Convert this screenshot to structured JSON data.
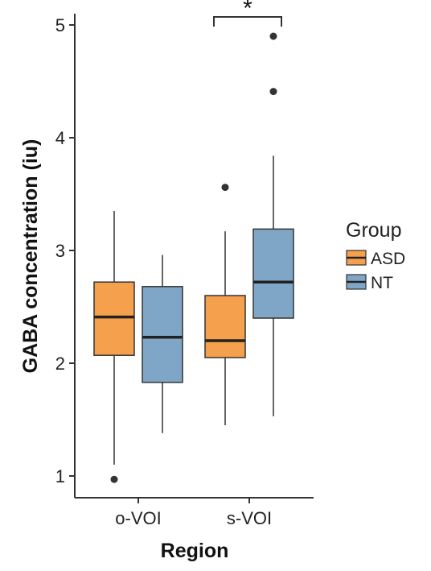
{
  "chart_data": {
    "type": "box",
    "xlabel": "Region",
    "ylabel": "GABA concentration (iu)",
    "ylim": [
      0.8,
      5.15
    ],
    "yticks": [
      1,
      2,
      3,
      4,
      5
    ],
    "categories": [
      "o-VOI",
      "s-VOI"
    ],
    "grid": false,
    "legend": {
      "title": "Group",
      "position": "right",
      "entries": [
        "ASD",
        "NT"
      ]
    },
    "series": [
      {
        "name": "ASD",
        "color": "#f5a04c",
        "boxes": [
          {
            "category": "o-VOI",
            "whisker_low": 1.1,
            "q1": 2.07,
            "median": 2.41,
            "q3": 2.72,
            "whisker_high": 3.35,
            "outliers": [
              0.97
            ]
          },
          {
            "category": "s-VOI",
            "whisker_low": 1.45,
            "q1": 2.05,
            "median": 2.2,
            "q3": 2.6,
            "whisker_high": 3.17,
            "outliers": [
              3.56
            ]
          }
        ]
      },
      {
        "name": "NT",
        "color": "#7fa6c6",
        "boxes": [
          {
            "category": "o-VOI",
            "whisker_low": 1.38,
            "q1": 1.83,
            "median": 2.23,
            "q3": 2.68,
            "whisker_high": 2.96,
            "outliers": []
          },
          {
            "category": "s-VOI",
            "whisker_low": 1.53,
            "q1": 2.4,
            "median": 2.72,
            "q3": 3.19,
            "whisker_high": 3.84,
            "outliers": [
              4.41,
              4.9
            ]
          }
        ]
      }
    ],
    "annotations": [
      {
        "text": "*",
        "type": "significance-bracket",
        "category": "s-VOI",
        "between": [
          "ASD",
          "NT"
        ],
        "y": 5.05
      }
    ]
  },
  "colors": {
    "axis": "#333333",
    "box_stroke": "#333333",
    "median": "#222222",
    "outlier": "#333333"
  }
}
